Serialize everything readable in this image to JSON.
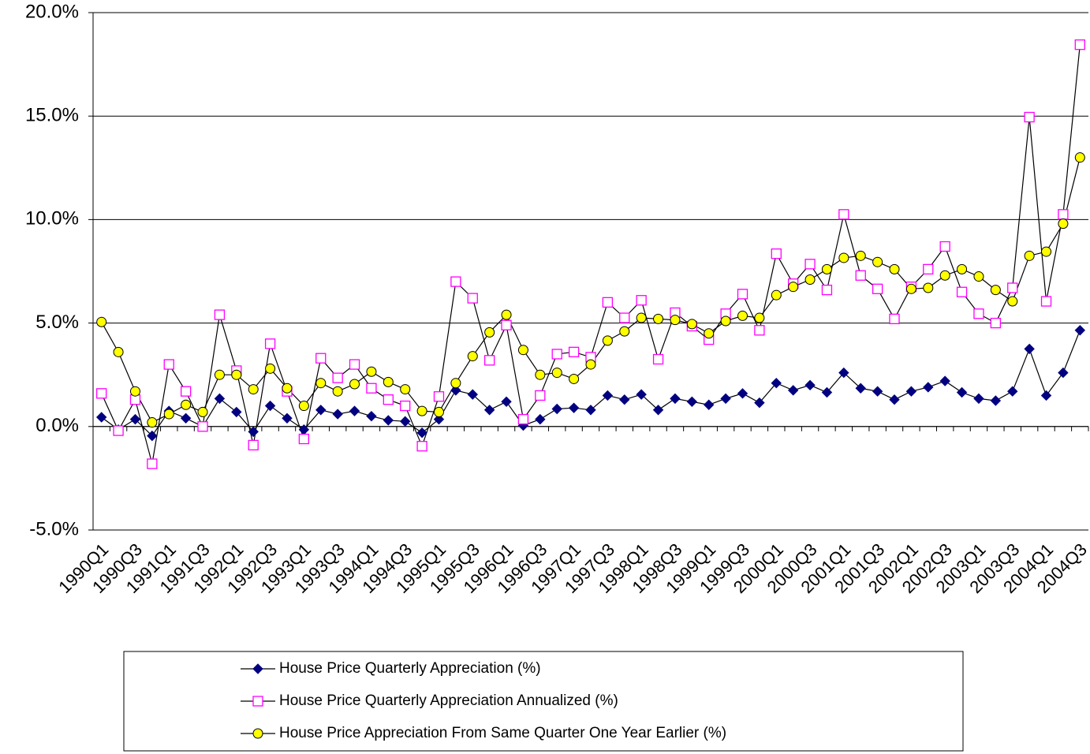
{
  "chart_data": {
    "type": "line",
    "categories": [
      "1990Q1",
      null,
      "1990Q3",
      null,
      "1991Q1",
      null,
      "1991Q3",
      null,
      "1992Q1",
      null,
      "1992Q3",
      null,
      "1993Q1",
      null,
      "1993Q3",
      null,
      "1994Q1",
      null,
      "1994Q3",
      null,
      "1995Q1",
      null,
      "1995Q3",
      null,
      "1996Q1",
      null,
      "1996Q3",
      null,
      "1997Q1",
      null,
      "1997Q3",
      null,
      "1998Q1",
      null,
      "1998Q3",
      null,
      "1999Q1",
      null,
      "1999Q3",
      null,
      "2000Q1",
      null,
      "2000Q3",
      null,
      "2001Q1",
      null,
      "2001Q3",
      null,
      "2002Q1",
      null,
      "2002Q3",
      null,
      "2003Q1",
      null,
      "2003Q3",
      null,
      "2004Q1",
      null,
      "2004Q3"
    ],
    "series": [
      {
        "name": "House Price Quarterly Appreciation (%)",
        "color": "#000080",
        "marker": "diamond",
        "values": [
          0.45,
          -0.15,
          0.35,
          -0.45,
          0.75,
          0.4,
          0.0,
          1.35,
          0.7,
          -0.25,
          1.0,
          0.4,
          -0.15,
          0.8,
          0.6,
          0.75,
          0.5,
          0.3,
          0.25,
          -0.3,
          0.35,
          1.75,
          1.55,
          0.8,
          1.2,
          0.05,
          0.35,
          0.85,
          0.9,
          0.8,
          1.5,
          1.3,
          1.55,
          0.8,
          1.35,
          1.2,
          1.05,
          1.35,
          1.6,
          1.15,
          2.1,
          1.75,
          2.0,
          1.65,
          2.6,
          1.85,
          1.7,
          1.3,
          1.7,
          1.9,
          2.2,
          1.65,
          1.35,
          1.25,
          1.7,
          3.75,
          1.5,
          2.6,
          4.65
        ]
      },
      {
        "name": "House Price Quarterly Appreciation Annualized (%)",
        "color": "#ff00ff",
        "marker": "square",
        "values": [
          1.6,
          -0.2,
          1.3,
          -1.8,
          3.0,
          1.7,
          0.0,
          5.4,
          2.7,
          -0.9,
          4.0,
          1.7,
          -0.6,
          3.3,
          2.35,
          3.0,
          1.85,
          1.3,
          1.0,
          -0.95,
          1.45,
          7.0,
          6.2,
          3.2,
          4.9,
          0.35,
          1.5,
          3.5,
          3.6,
          3.35,
          6.0,
          5.25,
          6.1,
          3.25,
          5.5,
          4.85,
          4.2,
          5.45,
          6.4,
          4.65,
          8.35,
          6.9,
          7.85,
          6.6,
          10.25,
          7.3,
          6.65,
          5.2,
          6.75,
          7.6,
          8.7,
          6.5,
          5.45,
          5.0,
          6.7,
          14.95,
          6.05,
          10.25,
          18.45
        ]
      },
      {
        "name": "House Price Appreciation From Same Quarter One Year Earlier (%)",
        "color": "#ffff00",
        "marker": "circle",
        "values": [
          5.05,
          3.6,
          1.7,
          0.2,
          0.6,
          1.05,
          0.7,
          2.5,
          2.5,
          1.8,
          2.8,
          1.85,
          1.0,
          2.1,
          1.7,
          2.05,
          2.65,
          2.15,
          1.8,
          0.75,
          0.7,
          2.1,
          3.4,
          4.55,
          5.4,
          3.7,
          2.5,
          2.6,
          2.3,
          3.0,
          4.15,
          4.6,
          5.25,
          5.2,
          5.15,
          4.95,
          4.5,
          5.1,
          5.35,
          5.25,
          6.35,
          6.75,
          7.1,
          7.6,
          8.15,
          8.25,
          7.95,
          7.6,
          6.65,
          6.7,
          7.3,
          7.6,
          7.25,
          6.6,
          6.05,
          8.25,
          8.45,
          9.8,
          13.0
        ]
      }
    ],
    "ylim": [
      -5,
      20
    ],
    "yticks": [
      {
        "value": -5,
        "label": "-5.0%"
      },
      {
        "value": 0,
        "label": "0.0%"
      },
      {
        "value": 5,
        "label": "5.0%"
      },
      {
        "value": 10,
        "label": "10.0%"
      },
      {
        "value": 15,
        "label": "15.0%"
      },
      {
        "value": 20,
        "label": "20.0%"
      }
    ],
    "grid": true,
    "legend": "bottom"
  }
}
